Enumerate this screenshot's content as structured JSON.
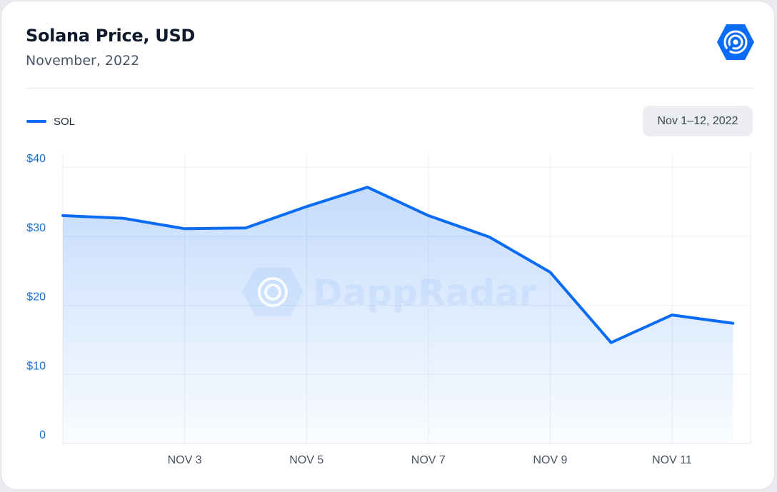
{
  "header": {
    "title": "Solana Price, USD",
    "subtitle": "November, 2022"
  },
  "logo": {
    "icon": "dappradar-logo-icon",
    "color": "#0a6cf5"
  },
  "date_range_badge": "Nov 1–12, 2022",
  "watermark": "DappRadar",
  "colors": {
    "line": "#0a6cf5",
    "axis_text": "#1a6fd0",
    "date_text": "#4a5462"
  },
  "chart_data": {
    "type": "area",
    "title": "Solana Price, USD",
    "subtitle": "November, 2022",
    "legend": {
      "position": "top-left"
    },
    "series": [
      {
        "name": "SOL",
        "x": [
          "Nov 1",
          "Nov 2",
          "Nov 3",
          "Nov 4",
          "Nov 5",
          "Nov 6",
          "Nov 7",
          "Nov 8",
          "Nov 9",
          "Nov 10",
          "Nov 11",
          "Nov 12"
        ],
        "values": [
          33.0,
          32.6,
          31.1,
          31.2,
          34.3,
          37.1,
          33.0,
          29.9,
          24.8,
          14.6,
          18.6,
          17.4
        ]
      }
    ],
    "ylim": [
      0,
      40
    ],
    "yticks": [
      0,
      10,
      20,
      30,
      40
    ],
    "ytick_labels": [
      "0",
      "$10",
      "$20",
      "$30",
      "$40"
    ],
    "xlim": [
      "Nov 1",
      "Nov 12"
    ],
    "xticks": [
      "Nov 3",
      "Nov 5",
      "Nov 7",
      "Nov 9",
      "Nov 11"
    ],
    "xtick_labels": [
      "NOV 3",
      "NOV 5",
      "NOV 7",
      "NOV 9",
      "NOV 11"
    ],
    "grid": true
  }
}
